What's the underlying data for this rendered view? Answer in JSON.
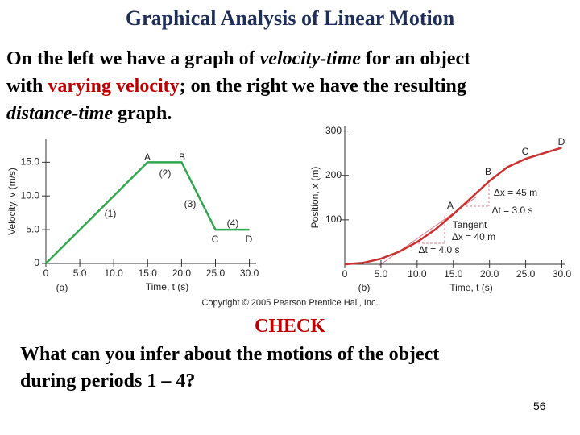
{
  "title": "Graphical Analysis of Linear Motion",
  "paragraph": {
    "lines": [
      [
        {
          "text": "On the left we have a graph of "
        },
        {
          "text": "velocity-time",
          "style": "italic"
        },
        {
          "text": " for an object"
        }
      ],
      [
        {
          "text": "with "
        },
        {
          "text": "varying velocity",
          "style": "red"
        },
        {
          "text": "; on the right we have the resulting"
        }
      ],
      [
        {
          "text": "distance-time",
          "style": "italic"
        },
        {
          "text": " graph."
        }
      ]
    ]
  },
  "copyright": "Copyright © 2005 Pearson Prentice Hall, Inc.",
  "check": "CHECK",
  "question": {
    "lines": [
      "What can you infer about the motions of the object",
      "during periods 1 – 4?"
    ]
  },
  "page_number": "56",
  "chart_data": [
    {
      "type": "line",
      "x_label": "Time, t (s)",
      "y_label": "Velocity, v (m/s)",
      "x": [
        0,
        15,
        20,
        25,
        30
      ],
      "series": [
        {
          "name": "velocity",
          "color": "#2fa84f",
          "values": [
            0,
            15,
            15,
            5,
            5
          ]
        }
      ],
      "xlim": [
        0,
        31
      ],
      "ylim": [
        0,
        18.5
      ],
      "xticks": [
        0,
        {
          "value": 5,
          "label": "5.0"
        },
        {
          "value": 10,
          "label": "10.0"
        },
        {
          "value": 15,
          "label": "15.0"
        },
        {
          "value": 20,
          "label": "20.0"
        },
        {
          "value": 25,
          "label": "25.0"
        },
        {
          "value": 30,
          "label": "30.0"
        }
      ],
      "yticks": [
        0,
        {
          "value": 5,
          "label": "5.0"
        },
        {
          "value": 10,
          "label": "10.0"
        },
        {
          "value": 15,
          "label": "15.0"
        }
      ],
      "annotations": [
        "A",
        "B",
        "C",
        "D",
        "(1)",
        "(2)",
        "(3)",
        "(4)",
        "(a)"
      ]
    },
    {
      "type": "line",
      "x_label": "Time, t (s)",
      "y_label": "Position, x (m)",
      "x": [
        0,
        2.5,
        5,
        7.5,
        10,
        12.5,
        15,
        17.5,
        20,
        22.5,
        25,
        27.5,
        30
      ],
      "series": [
        {
          "name": "position",
          "color": "#c8312f",
          "values": [
            0,
            3.1,
            12.5,
            28.1,
            50,
            78.1,
            112.5,
            150,
            187.5,
            218.8,
            237.5,
            250,
            262.5
          ]
        }
      ],
      "xlim": [
        0,
        30.5
      ],
      "ylim": [
        0,
        312
      ],
      "xticks": [
        0,
        {
          "value": 5,
          "label": "5.0"
        },
        {
          "value": 10,
          "label": "10.0"
        },
        {
          "value": 15,
          "label": "15.0"
        },
        {
          "value": 20,
          "label": "20.0"
        },
        {
          "value": 25,
          "label": "25.0"
        },
        {
          "value": 30,
          "label": "30.0"
        }
      ],
      "yticks": [
        100,
        200,
        300
      ],
      "annotations": [
        "A",
        "B",
        "C",
        "D",
        "Δx = 45 m",
        "Δt = 3.0 s",
        "Tangent",
        "Δx = 40 m",
        "Δt = 4.0 s",
        "(b)"
      ]
    }
  ]
}
